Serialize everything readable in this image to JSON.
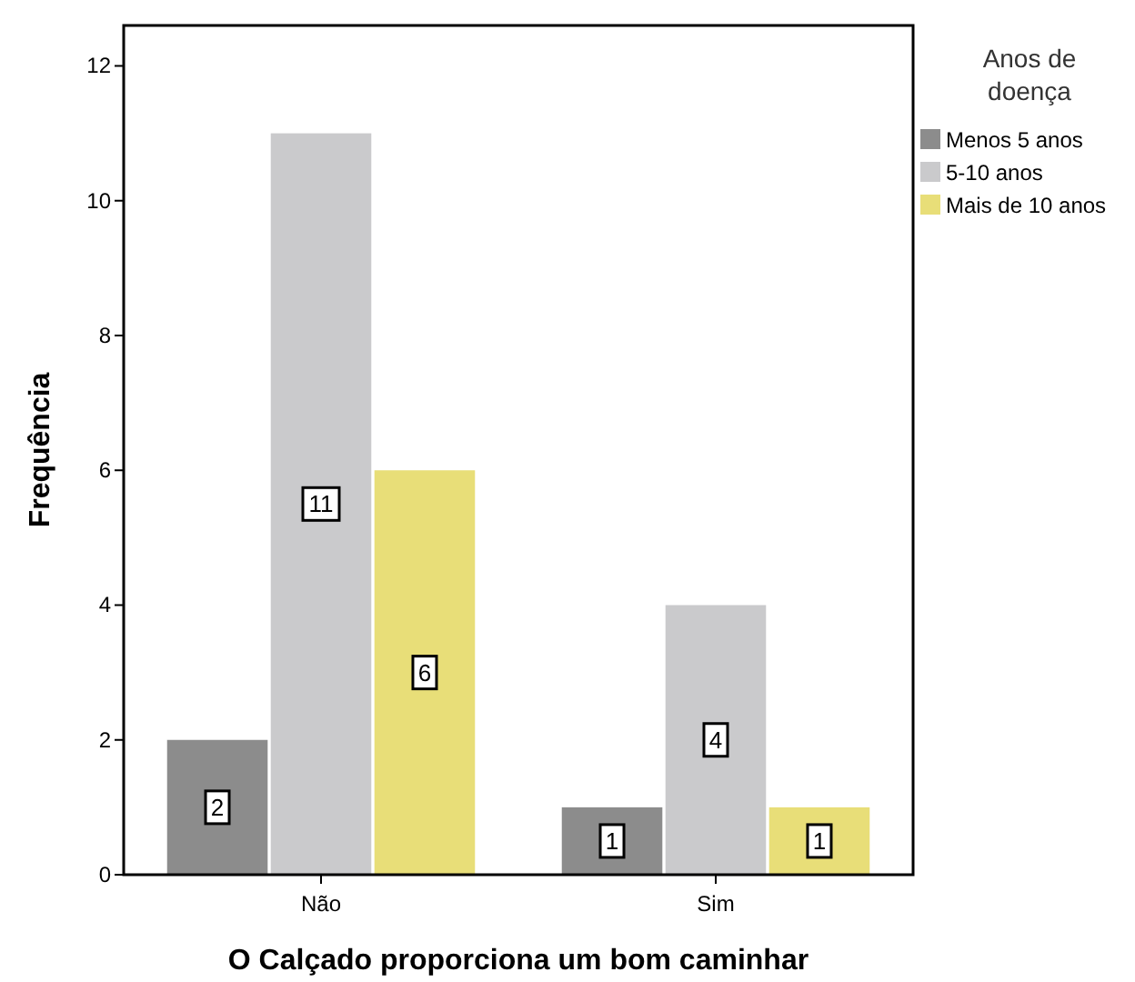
{
  "chart_data": {
    "type": "bar",
    "xlabel": "O Calçado proporciona um bom caminhar",
    "ylabel": "Frequência",
    "legend_title": "Anos de doença",
    "categories": [
      "Não",
      "Sim"
    ],
    "series": [
      {
        "name": "Menos 5 anos",
        "color": "#8c8c8c",
        "values": [
          2,
          1
        ]
      },
      {
        "name": "5-10 anos",
        "color": "#cacacc",
        "values": [
          11,
          4
        ]
      },
      {
        "name": "Mais de 10 anos",
        "color": "#e8de78",
        "values": [
          6,
          1
        ]
      }
    ],
    "ylim": [
      0,
      12.6
    ],
    "yticks": [
      0,
      2,
      4,
      6,
      8,
      10,
      12
    ],
    "legend": "right",
    "data_labels": true
  }
}
